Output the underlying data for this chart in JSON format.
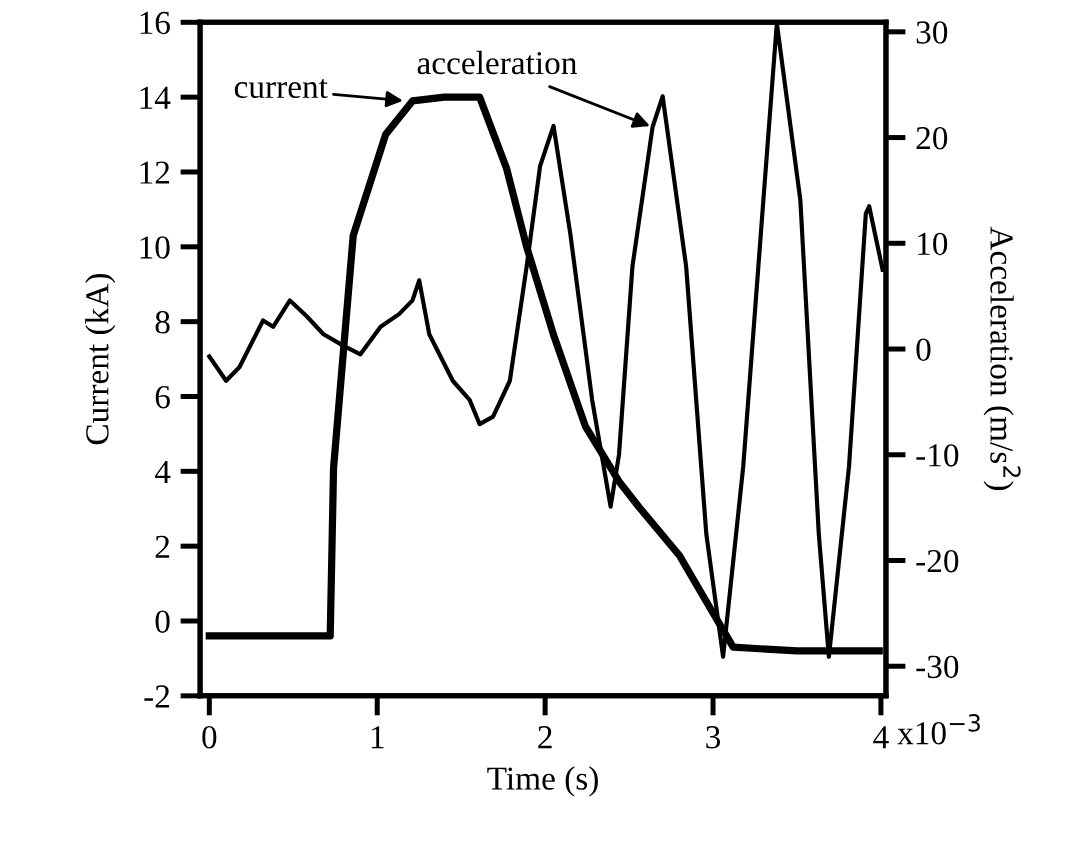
{
  "chart_data": {
    "type": "line",
    "xlabel": "Time (s)",
    "ylabel": "Current (kA)",
    "y2label": "Acceleration (m/s$^{2}$)",
    "xlim": [
      -0.055,
      4.03
    ],
    "xticks": [
      0,
      1,
      2,
      3,
      4
    ],
    "ylim": [
      -2,
      16
    ],
    "yticks": [
      -2,
      0,
      2,
      4,
      6,
      8,
      10,
      12,
      14,
      16
    ],
    "y2lim": [
      -32.8,
      30.9
    ],
    "y2ticks": [
      -30,
      -20,
      -10,
      0,
      10,
      20,
      30
    ],
    "grid": false,
    "series": [
      {
        "color": "#000000",
        "x": [
          0,
          0.3,
          0.6,
          0.72,
          0.74,
          0.857,
          1.05,
          1.21,
          1.4,
          1.61,
          1.77,
          1.89,
          2.05,
          2.24,
          2.44,
          2.56,
          2.8,
          2.96,
          3.12,
          3.5,
          3.99
        ],
        "values": [
          -0.4,
          -0.4,
          -0.4,
          -0.4,
          4.1,
          10.3,
          13.0,
          13.9,
          14.0,
          14.0,
          12.1,
          10.0,
          7.65,
          5.2,
          3.73,
          3.04,
          1.75,
          0.52,
          -0.7,
          -0.8,
          -0.8
        ]
      },
      {
        "color": "#000000",
        "axis": "y2",
        "x": [
          0,
          0.1,
          0.18,
          0.32,
          0.38,
          0.48,
          0.58,
          0.68,
          0.8,
          0.9,
          1.02,
          1.13,
          1.21,
          1.25,
          1.31,
          1.45,
          1.55,
          1.61,
          1.69,
          1.79,
          1.89,
          1.97,
          2.05,
          2.15,
          2.28,
          2.39,
          2.44,
          2.52,
          2.64,
          2.7,
          2.84,
          2.96,
          3.06,
          3.18,
          3.3,
          3.38,
          3.52,
          3.63,
          3.69,
          3.81,
          3.91,
          3.93,
          4.01
        ],
        "values": [
          -0.7,
          -3.0,
          -1.7,
          2.7,
          2.1,
          4.6,
          3.1,
          1.4,
          0.3,
          -0.5,
          2.1,
          3.3,
          4.6,
          6.5,
          1.4,
          -3.0,
          -4.8,
          -7.1,
          -6.4,
          -3.0,
          7.8,
          17.3,
          21.1,
          10.9,
          -4.8,
          -14.9,
          -10,
          7.8,
          21,
          23.9,
          7.8,
          -17.5,
          -29.1,
          -11.1,
          14.1,
          30.8,
          14.1,
          -17.5,
          -29.1,
          -11.1,
          12.8,
          13.5,
          7.5
        ]
      }
    ],
    "annotations": [
      "x10$^{−3}$",
      {
        "text": "current",
        "x": 1.17,
        "y": 13.9
      },
      {
        "text": "acceleration",
        "x": 2.64,
        "y": 13.2
      }
    ]
  }
}
